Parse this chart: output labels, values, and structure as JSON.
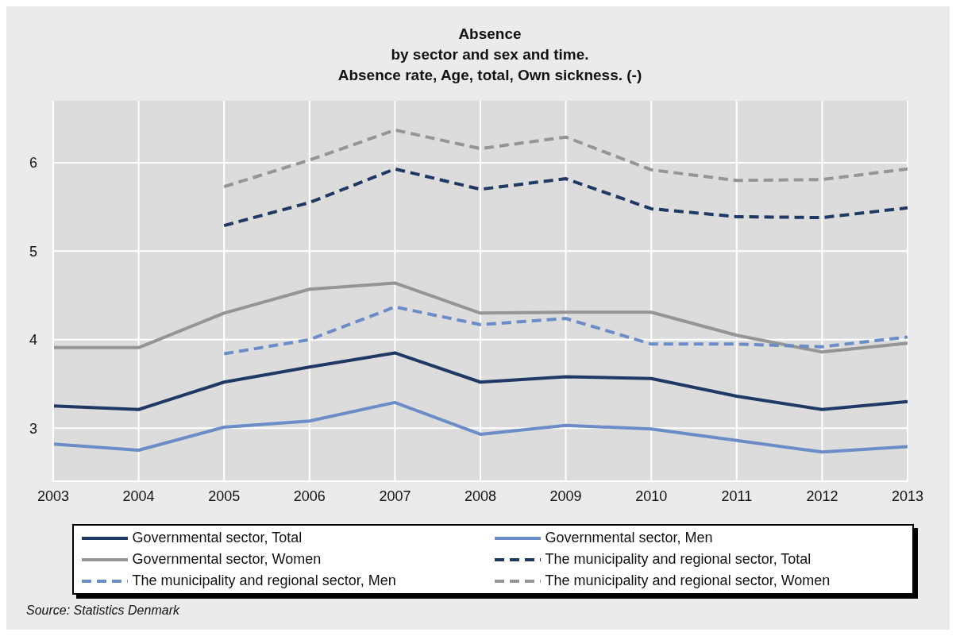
{
  "chart_data": {
    "type": "line",
    "title": "Absence",
    "subtitle": "by sector and sex and time.\nAbsence rate, Age, total, Own sickness. (-)",
    "x": [
      2003,
      2004,
      2005,
      2006,
      2007,
      2008,
      2009,
      2010,
      2011,
      2012,
      2013
    ],
    "xlim": [
      2003,
      2013
    ],
    "xticks": [
      2003,
      2004,
      2005,
      2006,
      2007,
      2008,
      2009,
      2010,
      2011,
      2012,
      2013
    ],
    "ylim": [
      2.4,
      6.7
    ],
    "yticks": [
      3,
      4,
      5,
      6
    ],
    "grid": true,
    "legend": "bottom",
    "marker": "none",
    "series": [
      {
        "name": "Governmental sector, Total",
        "color": "#1f3864",
        "line_style": "solid",
        "values": [
          3.25,
          3.21,
          3.52,
          3.69,
          3.85,
          3.52,
          3.58,
          3.56,
          3.36,
          3.21,
          3.3
        ]
      },
      {
        "name": "Governmental sector, Men",
        "color": "#6b8cc7",
        "line_style": "solid",
        "values": [
          2.82,
          2.75,
          3.01,
          3.08,
          3.29,
          2.93,
          3.03,
          2.99,
          2.86,
          2.73,
          2.79
        ]
      },
      {
        "name": "Governmental sector, Women",
        "color": "#959595",
        "line_style": "solid",
        "values": [
          3.91,
          3.91,
          4.3,
          4.57,
          4.64,
          4.3,
          4.31,
          4.31,
          4.05,
          3.86,
          3.96
        ]
      },
      {
        "name": "The municipality and regional sector, Total",
        "color": "#1f3864",
        "line_style": "dashed",
        "values": [
          null,
          null,
          5.29,
          5.55,
          5.93,
          5.7,
          5.82,
          5.48,
          5.39,
          5.38,
          5.49
        ]
      },
      {
        "name": "The municipality and regional sector, Men",
        "color": "#6b8cc7",
        "line_style": "dashed",
        "values": [
          null,
          null,
          3.84,
          4.0,
          4.37,
          4.17,
          4.24,
          3.95,
          3.95,
          3.92,
          4.03
        ]
      },
      {
        "name": "The municipality and regional sector, Women",
        "color": "#959595",
        "line_style": "dashed",
        "values": [
          null,
          null,
          5.73,
          6.03,
          6.37,
          6.16,
          6.29,
          5.92,
          5.8,
          5.81,
          5.93
        ]
      }
    ],
    "annotations": [
      "Source: Statistics Denmark"
    ]
  }
}
